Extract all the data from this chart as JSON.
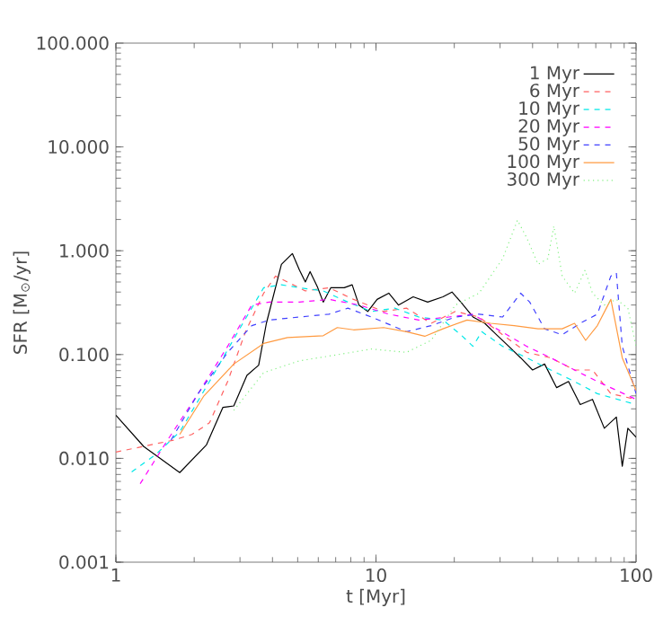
{
  "chart_data": {
    "type": "line",
    "xlabel": "t [Myr]",
    "ylabel": "SFR [M$_{⊙}$/yr]",
    "log": "xy",
    "xlim": [
      1,
      100
    ],
    "ylim": [
      0.001,
      100
    ],
    "xticks": [
      1,
      10,
      100
    ],
    "yticks": [
      {
        "value": 0.001,
        "label": "0.001"
      },
      {
        "value": 0.01,
        "label": "0.010"
      },
      {
        "value": 0.1,
        "label": "0.100"
      },
      {
        "value": 1,
        "label": "1.000"
      },
      {
        "value": 10,
        "label": "10.000"
      },
      {
        "value": 100,
        "label": "100.000"
      }
    ],
    "legend": "top right",
    "series": [
      {
        "name": "1 Myr",
        "color": "#000000",
        "line_style": "solid",
        "x": [
          1,
          1.28,
          1.76,
          2.23,
          2.58,
          2.84,
          3.19,
          3.54,
          3.79,
          4.33,
          4.77,
          5.08,
          5.35,
          5.58,
          5.95,
          6.27,
          6.7,
          7.55,
          8.1,
          8.6,
          9.3,
          10.1,
          11.2,
          12.2,
          13.9,
          15.8,
          18.1,
          19.6,
          21.2,
          23.6,
          26.2,
          29.1,
          32.4,
          36,
          40,
          44.5,
          49.5,
          55,
          61,
          68,
          75.5,
          84,
          88.5,
          93,
          100
        ],
        "values": [
          0.026,
          0.013,
          0.0073,
          0.0135,
          0.031,
          0.032,
          0.063,
          0.079,
          0.2,
          0.74,
          0.94,
          0.65,
          0.5,
          0.63,
          0.45,
          0.32,
          0.44,
          0.44,
          0.47,
          0.3,
          0.26,
          0.34,
          0.39,
          0.3,
          0.36,
          0.32,
          0.36,
          0.4,
          0.32,
          0.23,
          0.2,
          0.155,
          0.12,
          0.093,
          0.071,
          0.081,
          0.048,
          0.055,
          0.033,
          0.037,
          0.0195,
          0.025,
          0.0084,
          0.0195,
          0.016
        ]
      },
      {
        "name": "6 Myr",
        "color": "#ff6060",
        "line_style": "dashed",
        "x": [
          1,
          1.67,
          1.96,
          2.29,
          2.69,
          3.15,
          3.7,
          4.11,
          4.57,
          5.35,
          6.6,
          8.2,
          10.7,
          13.1,
          16.3,
          20.2,
          24.9,
          30.7,
          38,
          47,
          58,
          68,
          80,
          100
        ],
        "values": [
          0.0115,
          0.015,
          0.017,
          0.022,
          0.055,
          0.166,
          0.39,
          0.57,
          0.5,
          0.41,
          0.44,
          0.34,
          0.26,
          0.28,
          0.2,
          0.26,
          0.23,
          0.155,
          0.105,
          0.093,
          0.071,
          0.071,
          0.042,
          0.037
        ]
      },
      {
        "name": "10 Myr",
        "color": "#00e8e8",
        "line_style": "dashed",
        "x": [
          1.15,
          1.43,
          1.76,
          2.29,
          2.99,
          3.7,
          4.33,
          5.08,
          6.27,
          7.8,
          9.6,
          11.8,
          14.6,
          18.1,
          21.2,
          23.6,
          25.5,
          30.7,
          38,
          47,
          58,
          71,
          100
        ],
        "values": [
          0.0074,
          0.011,
          0.018,
          0.055,
          0.177,
          0.44,
          0.47,
          0.44,
          0.41,
          0.32,
          0.26,
          0.28,
          0.23,
          0.215,
          0.155,
          0.12,
          0.166,
          0.12,
          0.093,
          0.071,
          0.055,
          0.042,
          0.033
        ]
      },
      {
        "name": "20 Myr",
        "color": "#ff00ff",
        "line_style": "dashed",
        "x": [
          1.24,
          1.58,
          2.07,
          2.69,
          3.33,
          3.89,
          5.08,
          6.6,
          8.6,
          11.2,
          14.6,
          19.1,
          23.6,
          29.1,
          38,
          47,
          58,
          71,
          100
        ],
        "values": [
          0.0057,
          0.015,
          0.042,
          0.12,
          0.3,
          0.32,
          0.32,
          0.34,
          0.3,
          0.245,
          0.215,
          0.23,
          0.245,
          0.177,
          0.12,
          0.093,
          0.071,
          0.055,
          0.037
        ]
      },
      {
        "name": "50 Myr",
        "color": "#4040ff",
        "line_style": "dashed",
        "x": [
          1.63,
          2.07,
          2.69,
          3.33,
          3.89,
          5.08,
          6.6,
          7.8,
          9.6,
          13.1,
          16.3,
          20.2,
          24.9,
          30.7,
          36,
          39,
          44.5,
          52,
          61,
          71,
          80,
          84,
          88.5,
          100
        ],
        "values": [
          0.015,
          0.042,
          0.105,
          0.19,
          0.215,
          0.23,
          0.245,
          0.28,
          0.23,
          0.166,
          0.19,
          0.23,
          0.245,
          0.23,
          0.39,
          0.32,
          0.177,
          0.155,
          0.2,
          0.245,
          0.57,
          0.61,
          0.12,
          0.042
        ]
      },
      {
        "name": "100 Myr",
        "color": "#ff9a40",
        "line_style": "solid",
        "x": [
          1.76,
          2.18,
          2.84,
          3.7,
          4.57,
          6.27,
          7.1,
          8.2,
          10.7,
          13.1,
          15.4,
          18.1,
          22.4,
          27.6,
          34,
          42,
          52,
          58,
          64,
          71,
          80,
          88.5,
          100
        ],
        "values": [
          0.017,
          0.04,
          0.081,
          0.128,
          0.146,
          0.152,
          0.182,
          0.173,
          0.182,
          0.166,
          0.15,
          0.177,
          0.215,
          0.2,
          0.19,
          0.177,
          0.177,
          0.2,
          0.137,
          0.19,
          0.34,
          0.093,
          0.045
        ]
      },
      {
        "name": "300 Myr",
        "color": "#80f080",
        "line_style": "dotted",
        "x": [
          2.84,
          3.7,
          5.08,
          7,
          9.6,
          13.1,
          16.3,
          20.2,
          24.9,
          30.7,
          35,
          38,
          42,
          45.8,
          48.3,
          52,
          58,
          63.7,
          68,
          75.5,
          84,
          93,
          100
        ],
        "values": [
          0.029,
          0.067,
          0.087,
          0.099,
          0.113,
          0.105,
          0.137,
          0.3,
          0.39,
          0.84,
          1.97,
          1.33,
          0.74,
          0.84,
          1.73,
          0.57,
          0.39,
          0.65,
          0.39,
          0.3,
          0.34,
          0.28,
          0.12
        ]
      }
    ]
  }
}
